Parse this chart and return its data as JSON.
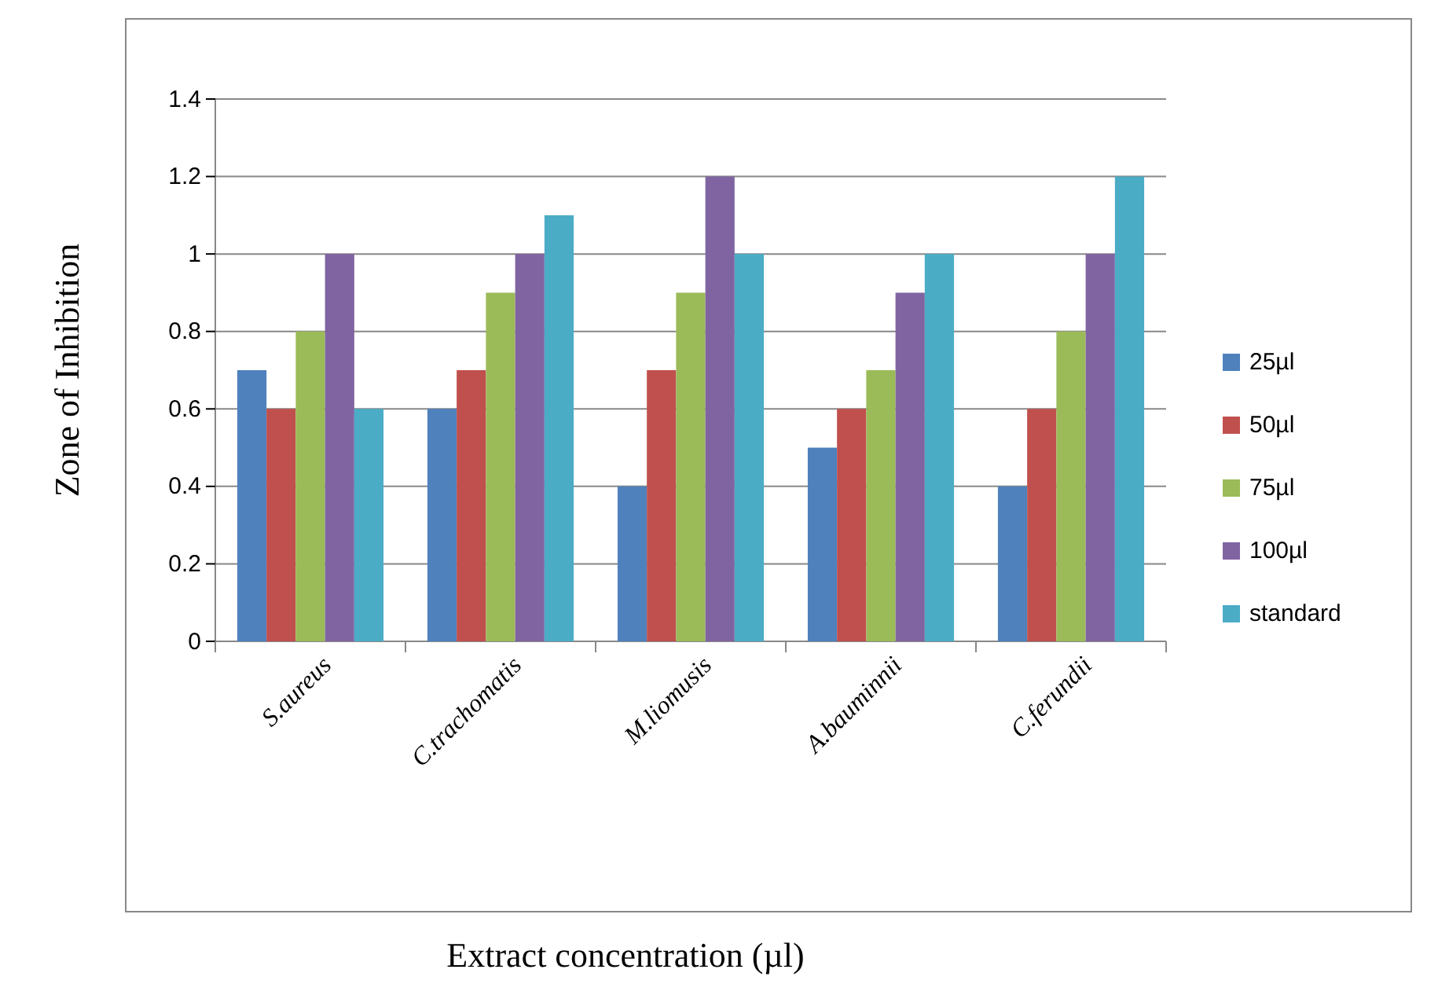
{
  "chart_data": {
    "type": "bar",
    "xlabel": "Extract concentration (µl)",
    "ylabel": "Zone of Inhibition",
    "categories": [
      "S.aureus",
      "C.trachomatis",
      "M.liomusis",
      "A.bauminnii",
      "C.ferundii"
    ],
    "series": [
      {
        "name": "25µl",
        "color": "#4f81bd",
        "values": [
          0.7,
          0.6,
          0.4,
          0.5,
          0.4
        ]
      },
      {
        "name": "50µl",
        "color": "#c0504d",
        "values": [
          0.6,
          0.7,
          0.7,
          0.6,
          0.6
        ]
      },
      {
        "name": "75µl",
        "color": "#9bbb59",
        "values": [
          0.8,
          0.9,
          0.9,
          0.7,
          0.8
        ]
      },
      {
        "name": "100µl",
        "color": "#8064a2",
        "values": [
          1.0,
          1.0,
          1.2,
          0.9,
          1.0
        ]
      },
      {
        "name": "standard",
        "color": "#4bacc6",
        "values": [
          0.6,
          1.1,
          1.0,
          1.0,
          1.2
        ]
      }
    ],
    "ylim": [
      0,
      1.4
    ],
    "yticks": [
      0,
      0.2,
      0.4,
      0.6,
      0.8,
      1,
      1.2,
      1.4
    ],
    "grid": "y",
    "legend": "right"
  }
}
